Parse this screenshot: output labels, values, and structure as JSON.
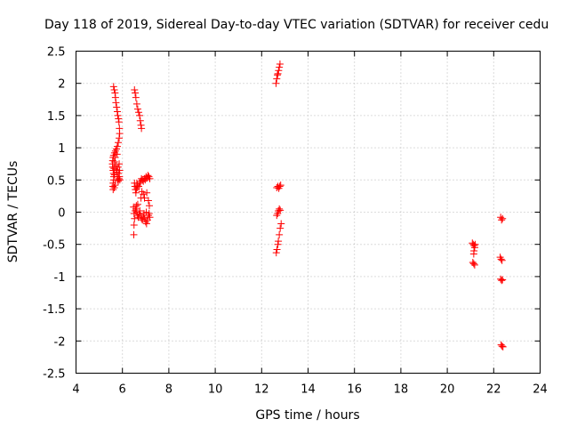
{
  "chart_data": {
    "type": "scatter",
    "title": "Day 118 of 2019, Sidereal Day-to-day VTEC variation (SDTVAR) for receiver cedu",
    "xlabel": "GPS time / hours",
    "ylabel": "SDTVAR / TECUs",
    "xlim": [
      4,
      24
    ],
    "ylim": [
      -2.5,
      2.5
    ],
    "xticks": [
      4,
      6,
      8,
      10,
      12,
      14,
      16,
      18,
      20,
      22,
      24
    ],
    "yticks": [
      -2.5,
      -2,
      -1.5,
      -1,
      -0.5,
      0,
      0.5,
      1,
      1.5,
      2,
      2.5
    ],
    "xtick_labels": [
      "4",
      "6",
      "8",
      "10",
      "12",
      "14",
      "16",
      "18",
      "20",
      "22",
      "24"
    ],
    "ytick_labels": [
      "-2.5",
      "-2",
      "-1.5",
      "-1",
      "-0.5",
      "0",
      "0.5",
      "1",
      "1.5",
      "2",
      "2.5"
    ],
    "grid": true,
    "marker": "+",
    "series": [
      {
        "name": "SDTVAR",
        "color": "#ff0000",
        "points": [
          [
            5.62,
            1.95
          ],
          [
            5.65,
            1.9
          ],
          [
            5.68,
            1.85
          ],
          [
            5.7,
            1.78
          ],
          [
            5.72,
            1.7
          ],
          [
            5.75,
            1.63
          ],
          [
            5.78,
            1.56
          ],
          [
            5.8,
            1.5
          ],
          [
            5.83,
            1.45
          ],
          [
            5.85,
            1.4
          ],
          [
            5.87,
            1.3
          ],
          [
            5.88,
            1.22
          ],
          [
            5.86,
            1.15
          ],
          [
            5.82,
            1.08
          ],
          [
            5.78,
            1.02
          ],
          [
            5.74,
            0.98
          ],
          [
            5.7,
            0.95
          ],
          [
            5.66,
            0.92
          ],
          [
            5.62,
            0.88
          ],
          [
            5.6,
            0.85
          ],
          [
            5.58,
            0.8
          ],
          [
            5.57,
            0.75
          ],
          [
            5.58,
            0.7
          ],
          [
            5.6,
            0.65
          ],
          [
            5.62,
            0.6
          ],
          [
            5.63,
            0.55
          ],
          [
            5.62,
            0.5
          ],
          [
            5.6,
            0.45
          ],
          [
            5.59,
            0.4
          ],
          [
            5.6,
            0.35
          ],
          [
            5.65,
            0.38
          ],
          [
            5.68,
            0.42
          ],
          [
            5.66,
            0.58
          ],
          [
            5.64,
            0.68
          ],
          [
            5.66,
            0.78
          ],
          [
            5.69,
            0.85
          ],
          [
            5.72,
            0.72
          ],
          [
            5.74,
            0.66
          ],
          [
            5.76,
            0.62
          ],
          [
            5.78,
            0.55
          ],
          [
            5.8,
            0.5
          ],
          [
            5.82,
            0.48
          ],
          [
            5.85,
            0.52
          ],
          [
            5.87,
            0.55
          ],
          [
            5.89,
            0.5
          ],
          [
            5.88,
            0.65
          ],
          [
            5.86,
            0.75
          ],
          [
            5.83,
            0.6
          ],
          [
            5.81,
            0.7
          ],
          [
            5.77,
            0.9
          ],
          [
            6.52,
            1.9
          ],
          [
            6.55,
            1.85
          ],
          [
            6.58,
            1.78
          ],
          [
            6.62,
            1.68
          ],
          [
            6.66,
            1.6
          ],
          [
            6.7,
            1.55
          ],
          [
            6.74,
            1.5
          ],
          [
            6.77,
            1.42
          ],
          [
            6.8,
            1.35
          ],
          [
            6.82,
            1.3
          ],
          [
            6.52,
            0.45
          ],
          [
            6.54,
            0.4
          ],
          [
            6.56,
            0.35
          ],
          [
            6.58,
            0.3
          ],
          [
            6.6,
            0.35
          ],
          [
            6.63,
            0.38
          ],
          [
            6.65,
            0.42
          ],
          [
            6.62,
            0.45
          ],
          [
            6.7,
            0.4
          ],
          [
            6.74,
            0.45
          ],
          [
            6.78,
            0.48
          ],
          [
            6.82,
            0.52
          ],
          [
            6.86,
            0.5
          ],
          [
            6.9,
            0.48
          ],
          [
            6.94,
            0.52
          ],
          [
            6.98,
            0.5
          ],
          [
            7.02,
            0.55
          ],
          [
            7.06,
            0.53
          ],
          [
            7.1,
            0.57
          ],
          [
            7.14,
            0.55
          ],
          [
            7.18,
            0.52
          ],
          [
            6.9,
            0.28
          ],
          [
            6.95,
            0.22
          ],
          [
            7.05,
            0.3
          ],
          [
            7.12,
            0.18
          ],
          [
            7.16,
            0.1
          ],
          [
            6.84,
            0.32
          ],
          [
            6.8,
            0.22
          ],
          [
            6.48,
            0.08
          ],
          [
            6.5,
            -0.02
          ],
          [
            6.52,
            -0.1
          ],
          [
            6.5,
            -0.2
          ],
          [
            6.49,
            -0.35
          ],
          [
            6.55,
            0.02
          ],
          [
            6.58,
            0.05
          ],
          [
            6.62,
            0.0
          ],
          [
            6.65,
            -0.05
          ],
          [
            6.68,
            -0.08
          ],
          [
            6.72,
            -0.03
          ],
          [
            6.75,
            0.02
          ],
          [
            6.78,
            -0.05
          ],
          [
            6.82,
            -0.1
          ],
          [
            6.86,
            -0.12
          ],
          [
            6.9,
            -0.08
          ],
          [
            6.93,
            -0.02
          ],
          [
            6.96,
            -0.1
          ],
          [
            7.0,
            -0.15
          ],
          [
            7.04,
            -0.18
          ],
          [
            7.08,
            -0.12
          ],
          [
            7.12,
            -0.05
          ],
          [
            7.15,
            -0.02
          ],
          [
            7.18,
            -0.08
          ],
          [
            7.03,
            0.0
          ],
          [
            6.6,
            0.1
          ],
          [
            6.66,
            0.12
          ],
          [
            12.62,
            2.0
          ],
          [
            12.65,
            2.07
          ],
          [
            12.68,
            2.13
          ],
          [
            12.7,
            2.15
          ],
          [
            12.73,
            2.2
          ],
          [
            12.76,
            2.25
          ],
          [
            12.79,
            2.3
          ],
          [
            12.65,
            0.38
          ],
          [
            12.7,
            0.4
          ],
          [
            12.74,
            0.37
          ],
          [
            12.78,
            0.4
          ],
          [
            12.82,
            0.42
          ],
          [
            12.65,
            -0.05
          ],
          [
            12.69,
            -0.02
          ],
          [
            12.72,
            0.02
          ],
          [
            12.76,
            0.05
          ],
          [
            12.8,
            0.03
          ],
          [
            12.84,
            -0.18
          ],
          [
            12.8,
            -0.25
          ],
          [
            12.76,
            -0.35
          ],
          [
            12.72,
            -0.45
          ],
          [
            12.7,
            -0.5
          ],
          [
            12.66,
            -0.58
          ],
          [
            12.63,
            -0.63
          ],
          [
            21.08,
            -0.48
          ],
          [
            21.12,
            -0.5
          ],
          [
            21.16,
            -0.52
          ],
          [
            21.2,
            -0.5
          ],
          [
            21.18,
            -0.55
          ],
          [
            21.15,
            -0.6
          ],
          [
            21.14,
            -0.65
          ],
          [
            21.1,
            -0.78
          ],
          [
            21.14,
            -0.8
          ],
          [
            21.18,
            -0.82
          ],
          [
            22.3,
            -0.08
          ],
          [
            22.34,
            -0.12
          ],
          [
            22.38,
            -0.1
          ],
          [
            22.28,
            -0.7
          ],
          [
            22.32,
            -0.73
          ],
          [
            22.36,
            -0.75
          ],
          [
            22.3,
            -1.04
          ],
          [
            22.34,
            -1.06
          ],
          [
            22.38,
            -1.05
          ],
          [
            22.32,
            -2.06
          ],
          [
            22.36,
            -2.08
          ],
          [
            22.4,
            -2.09
          ]
        ]
      }
    ]
  }
}
